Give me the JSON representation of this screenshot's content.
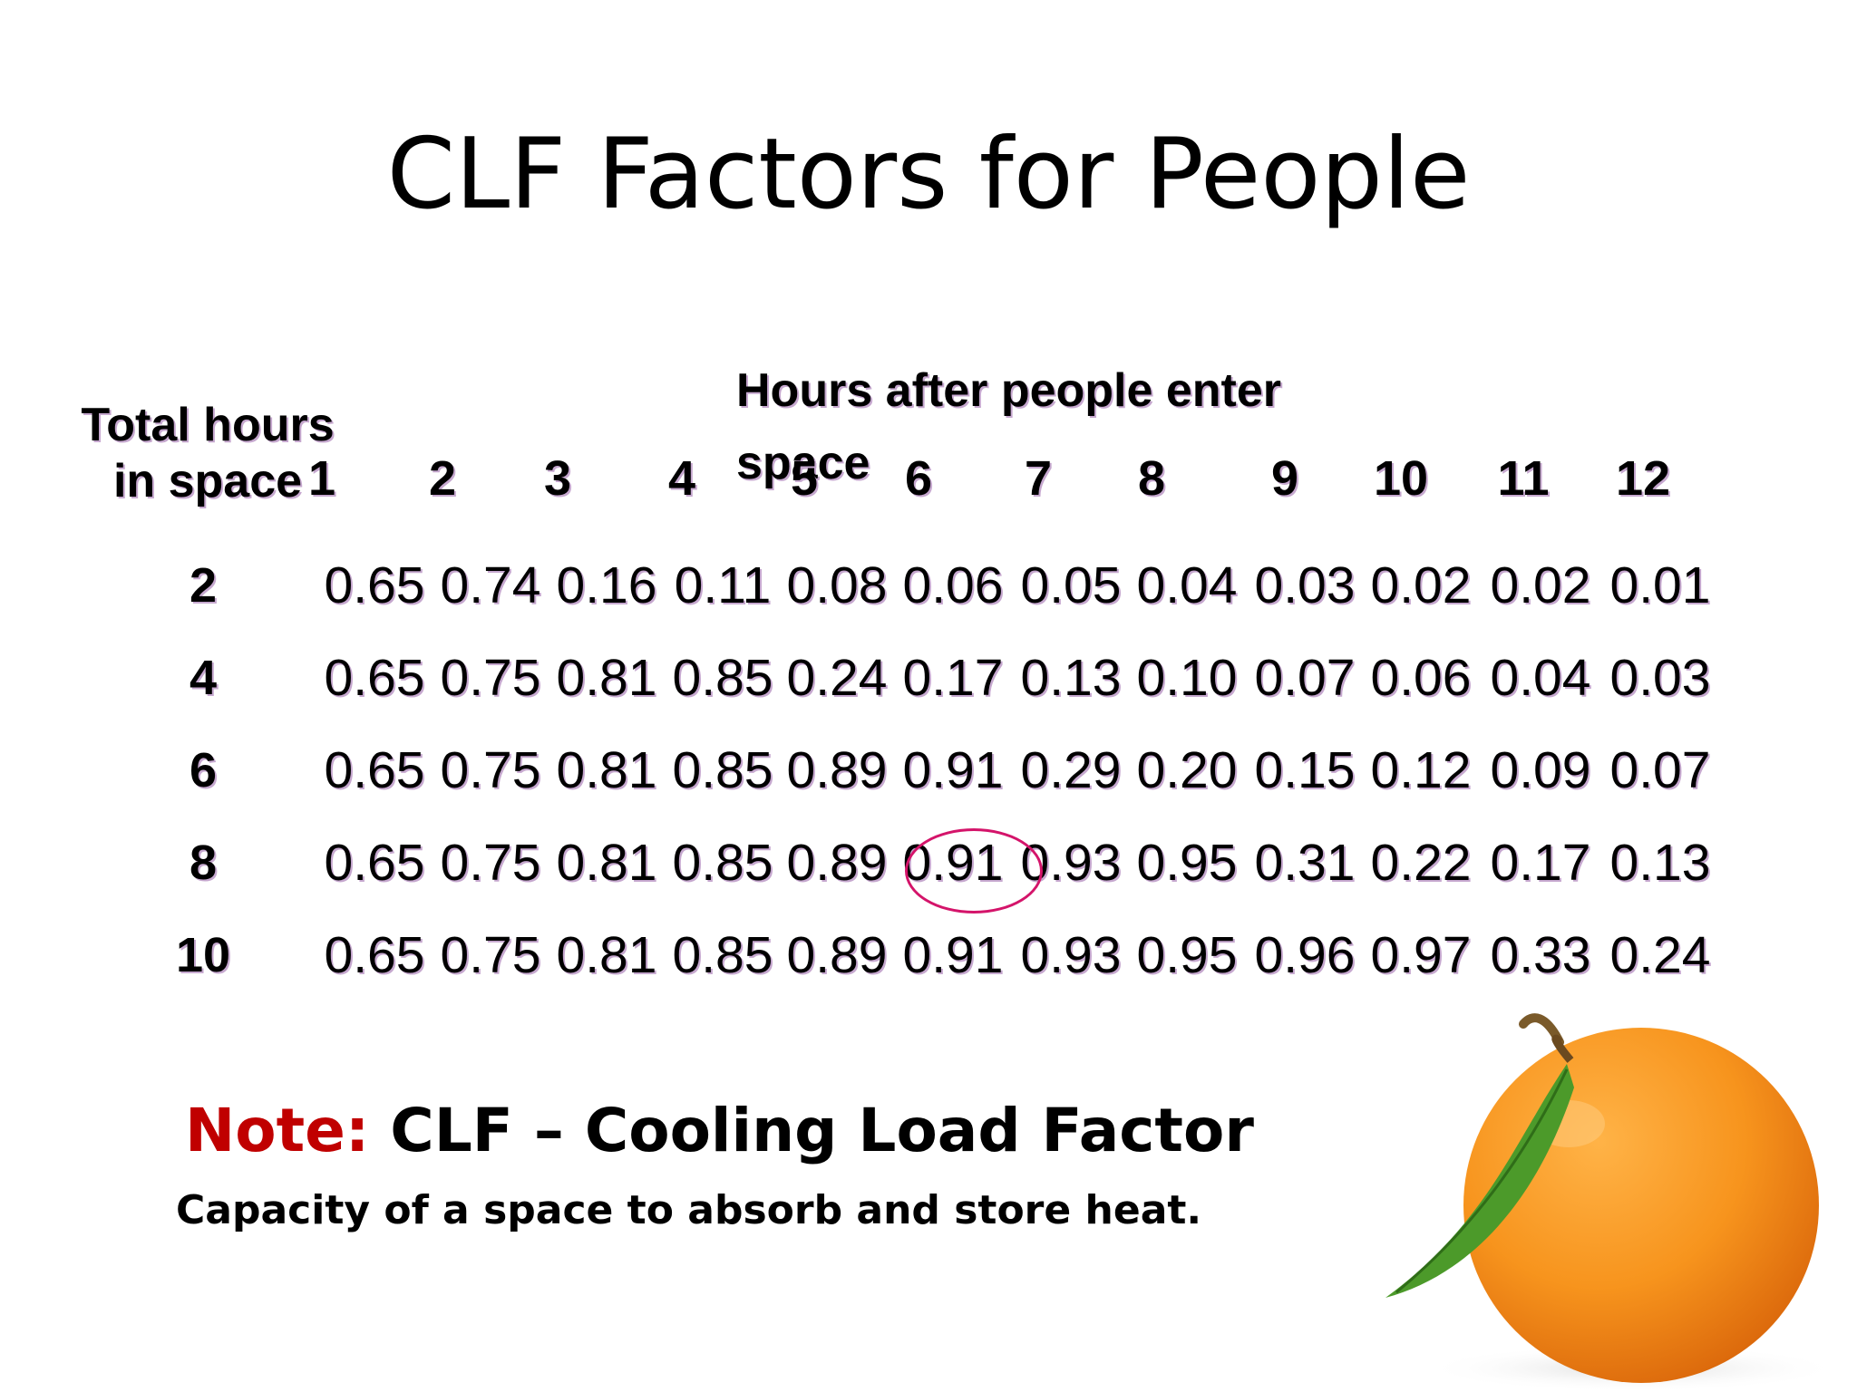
{
  "title": "CLF Factors for People",
  "table": {
    "row_header": [
      "Total hours",
      "in space"
    ],
    "col_header": [
      "Hours after people enter",
      "space"
    ],
    "columns": [
      "1",
      "2",
      "3",
      "4",
      "5",
      "6",
      "7",
      "8",
      "9",
      "10",
      "11",
      "12"
    ],
    "rows": [
      {
        "label": "2",
        "values": [
          "0.65",
          "0.74",
          "0.16",
          "0.11",
          "0.08",
          "0.06",
          "0.05",
          "0.04",
          "0.03",
          "0.02",
          "0.02",
          "0.01"
        ]
      },
      {
        "label": "4",
        "values": [
          "0.65",
          "0.75",
          "0.81",
          "0.85",
          "0.24",
          "0.17",
          "0.13",
          "0.10",
          "0.07",
          "0.06",
          "0.04",
          "0.03"
        ]
      },
      {
        "label": "6",
        "values": [
          "0.65",
          "0.75",
          "0.81",
          "0.85",
          "0.89",
          "0.91",
          "0.29",
          "0.20",
          "0.15",
          "0.12",
          "0.09",
          "0.07"
        ]
      },
      {
        "label": "8",
        "values": [
          "0.65",
          "0.75",
          "0.81",
          "0.85",
          "0.89",
          "0.91",
          "0.93",
          "0.95",
          "0.31",
          "0.22",
          "0.17",
          "0.13"
        ]
      },
      {
        "label": "10",
        "values": [
          "0.65",
          "0.75",
          "0.81",
          "0.85",
          "0.89",
          "0.91",
          "0.93",
          "0.95",
          "0.96",
          "0.97",
          "0.33",
          "0.24"
        ]
      }
    ],
    "highlight": {
      "row": 3,
      "col": 5,
      "color": "#d4146a"
    }
  },
  "note": {
    "label": "Note:",
    "text": "CLF – Cooling Load Factor",
    "subtext": "Capacity of a space to absorb and store heat."
  },
  "colors": {
    "note_label": "#c00000",
    "highlight": "#d4146a",
    "orange": "#f7941d"
  },
  "image": {
    "icon": "orange-fruit-icon"
  }
}
